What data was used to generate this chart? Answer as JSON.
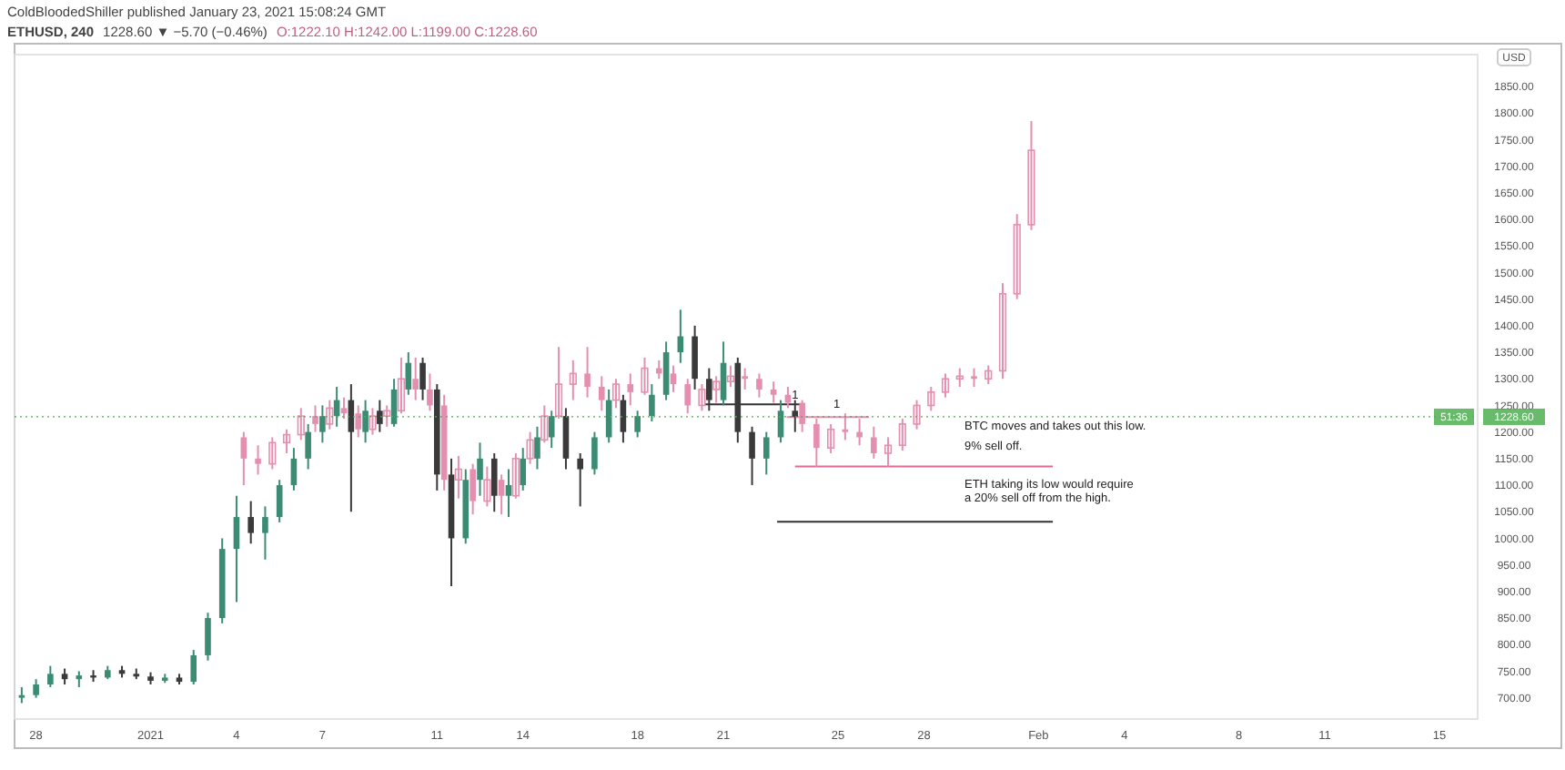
{
  "chart_data": {
    "type": "candlestick",
    "title": "ETHUSD, 240",
    "subtitle": "ColdBloodedShiller published January 23, 2021 15:08:24 GMT",
    "ylabel": "USD",
    "xlim": [
      "2020-12-27T06:00",
      "2021-02-16T08:00"
    ],
    "xticks": [
      {
        "value": "2020-12-28",
        "label": "28"
      },
      {
        "value": "2021-01-01",
        "label": "2021"
      },
      {
        "value": "2021-01-04",
        "label": "4"
      },
      {
        "value": "2021-01-07",
        "label": "7"
      },
      {
        "value": "2021-01-11",
        "label": "11"
      },
      {
        "value": "2021-01-14",
        "label": "14"
      },
      {
        "value": "2021-01-18",
        "label": "18"
      },
      {
        "value": "2021-01-21",
        "label": "21"
      },
      {
        "value": "2021-01-25",
        "label": "25"
      },
      {
        "value": "2021-01-28",
        "label": "28"
      },
      {
        "value": "2021-02-01",
        "label": "Feb"
      },
      {
        "value": "2021-02-04",
        "label": "4"
      },
      {
        "value": "2021-02-08",
        "label": "8"
      },
      {
        "value": "2021-02-11",
        "label": "11"
      },
      {
        "value": "2021-02-15",
        "label": "15"
      }
    ],
    "ylim": [
      660,
      1910
    ],
    "yticks": [
      {
        "value": 700,
        "label": "700.00"
      },
      {
        "value": 750,
        "label": "750.00"
      },
      {
        "value": 800,
        "label": "800.00"
      },
      {
        "value": 850,
        "label": "850.00"
      },
      {
        "value": 900,
        "label": "900.00"
      },
      {
        "value": 950,
        "label": "950.00"
      },
      {
        "value": 1000,
        "label": "1000.00"
      },
      {
        "value": 1050,
        "label": "1050.00"
      },
      {
        "value": 1100,
        "label": "1100.00"
      },
      {
        "value": 1150,
        "label": "1150.00"
      },
      {
        "value": 1200,
        "label": "1200.00"
      },
      {
        "value": 1250,
        "label": "1250.00"
      },
      {
        "value": 1300,
        "label": "1300.00"
      },
      {
        "value": 1350,
        "label": "1350.00"
      },
      {
        "value": 1400,
        "label": "1400.00"
      },
      {
        "value": 1450,
        "label": "1450.00"
      },
      {
        "value": 1500,
        "label": "1500.00"
      },
      {
        "value": 1550,
        "label": "1550.00"
      },
      {
        "value": 1600,
        "label": "1600.00"
      },
      {
        "value": 1650,
        "label": "1650.00"
      },
      {
        "value": 1700,
        "label": "1700.00"
      },
      {
        "value": 1750,
        "label": "1750.00"
      },
      {
        "value": 1800,
        "label": "1800.00"
      },
      {
        "value": 1850,
        "label": "1850.00"
      }
    ],
    "grid": false,
    "ref_lines": [
      {
        "axis": "y",
        "value": 1228.6,
        "label": "1228.60",
        "color": "#4caf50"
      }
    ],
    "annotations": [
      "1228.60 ▼ −5.70 (−0.46%)",
      "O:1222.10 H:1242.00 L:1199.00 C:1228.60",
      "51:36",
      {
        "text": "1",
        "x": "2021-01-23T12:00",
        "y": 1262
      },
      {
        "text": "1",
        "x": "2021-01-24T23:00",
        "y": 1245
      },
      "BTC moves and takes out this low.",
      "9% sell off.",
      "ETH taking its low would require\na 20% sell off from the high."
    ],
    "series": [
      {
        "x": [
          "2020-12-27T12:00",
          "2020-12-28T00:00",
          "2020-12-28T12:00",
          "2020-12-29T00:00",
          "2020-12-29T12:00",
          "2020-12-30T00:00",
          "2020-12-30T12:00",
          "2020-12-31T00:00",
          "2020-12-31T12:00",
          "2021-01-01T00:00",
          "2021-01-01T12:00",
          "2021-01-02T00:00",
          "2021-01-02T12:00",
          "2021-01-03T00:00",
          "2021-01-03T12:00",
          "2021-01-04T00:00",
          "2021-01-04T12:00",
          "2021-01-05T00:00",
          "2021-01-05T12:00",
          "2021-01-06T00:00",
          "2021-01-06T12:00",
          "2021-01-07T00:00",
          "2021-01-07T12:00",
          "2021-01-08T00:00",
          "2021-01-08T12:00",
          "2021-01-09T00:00",
          "2021-01-09T12:00",
          "2021-01-10T00:00",
          "2021-01-10T12:00",
          "2021-01-11T00:00",
          "2021-01-11T12:00",
          "2021-01-12T00:00",
          "2021-01-12T12:00",
          "2021-01-13T00:00",
          "2021-01-13T12:00",
          "2021-01-14T00:00",
          "2021-01-14T12:00",
          "2021-01-15T00:00",
          "2021-01-15T12:00",
          "2021-01-16T00:00",
          "2021-01-16T12:00",
          "2021-01-17T00:00",
          "2021-01-17T12:00",
          "2021-01-18T00:00",
          "2021-01-18T12:00",
          "2021-01-19T00:00",
          "2021-01-19T12:00",
          "2021-01-20T00:00",
          "2021-01-20T12:00",
          "2021-01-21T00:00",
          "2021-01-21T12:00",
          "2021-01-22T00:00",
          "2021-01-22T12:00",
          "2021-01-23T00:00",
          "2021-01-23T12:00"
        ],
        "ohlc": [
          [
            700,
            720,
            690,
            705
          ],
          [
            705,
            735,
            700,
            725
          ],
          [
            725,
            760,
            720,
            745
          ],
          [
            745,
            755,
            725,
            735
          ],
          [
            735,
            750,
            720,
            742
          ],
          [
            742,
            752,
            730,
            738
          ],
          [
            738,
            760,
            735,
            752
          ],
          [
            752,
            760,
            738,
            745
          ],
          [
            745,
            755,
            735,
            740
          ],
          [
            740,
            748,
            725,
            732
          ],
          [
            732,
            745,
            728,
            738
          ],
          [
            738,
            745,
            725,
            730
          ],
          [
            730,
            790,
            725,
            780
          ],
          [
            780,
            860,
            770,
            850
          ],
          [
            850,
            1000,
            840,
            980
          ],
          [
            980,
            1080,
            880,
            1040
          ],
          [
            1040,
            1070,
            990,
            1010
          ],
          [
            1010,
            1060,
            960,
            1040
          ],
          [
            1040,
            1110,
            1030,
            1100
          ],
          [
            1100,
            1170,
            1090,
            1150
          ],
          [
            1150,
            1215,
            1130,
            1200
          ],
          [
            1200,
            1250,
            1180,
            1230
          ],
          [
            1230,
            1285,
            1210,
            1260
          ],
          [
            1260,
            1290,
            1050,
            1200
          ],
          [
            1200,
            1260,
            1180,
            1240
          ],
          [
            1240,
            1260,
            1200,
            1215
          ],
          [
            1215,
            1300,
            1210,
            1280
          ],
          [
            1280,
            1350,
            1270,
            1330
          ],
          [
            1330,
            1340,
            1260,
            1280
          ],
          [
            1280,
            1290,
            1090,
            1120
          ],
          [
            1120,
            1150,
            910,
            1000
          ],
          [
            1000,
            1130,
            990,
            1110
          ],
          [
            1110,
            1180,
            1080,
            1150
          ],
          [
            1150,
            1160,
            1050,
            1080
          ],
          [
            1080,
            1130,
            1040,
            1100
          ],
          [
            1100,
            1170,
            1090,
            1150
          ],
          [
            1150,
            1210,
            1130,
            1190
          ],
          [
            1190,
            1240,
            1170,
            1230
          ],
          [
            1230,
            1245,
            1130,
            1150
          ],
          [
            1150,
            1160,
            1060,
            1130
          ],
          [
            1130,
            1200,
            1120,
            1190
          ],
          [
            1190,
            1280,
            1180,
            1260
          ],
          [
            1260,
            1270,
            1180,
            1200
          ],
          [
            1200,
            1240,
            1190,
            1230
          ],
          [
            1230,
            1290,
            1220,
            1270
          ],
          [
            1270,
            1370,
            1260,
            1350
          ],
          [
            1350,
            1430,
            1330,
            1380
          ],
          [
            1380,
            1400,
            1280,
            1300
          ],
          [
            1300,
            1320,
            1240,
            1260
          ],
          [
            1260,
            1370,
            1250,
            1330
          ],
          [
            1330,
            1340,
            1180,
            1200
          ],
          [
            1200,
            1210,
            1100,
            1150
          ],
          [
            1150,
            1200,
            1120,
            1190
          ],
          [
            1190,
            1260,
            1180,
            1240
          ],
          [
            1240,
            1260,
            1200,
            1228.6
          ]
        ],
        "colors": [
          "#3c8c74",
          "#3c8c74",
          "#3c8c74",
          "#3a3a3a",
          "#3c8c74",
          "#3a3a3a",
          "#3c8c74",
          "#3a3a3a",
          "#3a3a3a",
          "#3a3a3a",
          "#3c8c74",
          "#3a3a3a",
          "#3c8c74",
          "#3c8c74",
          "#3c8c74",
          "#3c8c74",
          "#3a3a3a",
          "#3c8c74",
          "#3c8c74",
          "#3c8c74",
          "#3c8c74",
          "#3c8c74",
          "#3c8c74",
          "#3a3a3a",
          "#3c8c74",
          "#3a3a3a",
          "#3c8c74",
          "#3c8c74",
          "#3a3a3a",
          "#3a3a3a",
          "#3a3a3a",
          "#3c8c74",
          "#3c8c74",
          "#3a3a3a",
          "#3c8c74",
          "#3c8c74",
          "#3c8c74",
          "#3c8c74",
          "#3a3a3a",
          "#3a3a3a",
          "#3c8c74",
          "#3c8c74",
          "#3a3a3a",
          "#3c8c74",
          "#3c8c74",
          "#3c8c74",
          "#3c8c74",
          "#3a3a3a",
          "#3a3a3a",
          "#3c8c74",
          "#3a3a3a",
          "#3a3a3a",
          "#3c8c74",
          "#3c8c74",
          "#3a3a3a"
        ]
      },
      {
        "color": "#e58fb0",
        "x": [
          "2021-01-04T06:00",
          "2021-01-04T18:00",
          "2021-01-05T06:00",
          "2021-01-05T18:00",
          "2021-01-06T06:00",
          "2021-01-06T18:00",
          "2021-01-07T06:00",
          "2021-01-07T18:00",
          "2021-01-08T06:00",
          "2021-01-08T18:00",
          "2021-01-09T06:00",
          "2021-01-09T18:00",
          "2021-01-10T06:00",
          "2021-01-10T18:00",
          "2021-01-11T06:00",
          "2021-01-11T18:00",
          "2021-01-12T06:00",
          "2021-01-12T18:00",
          "2021-01-13T06:00",
          "2021-01-13T18:00",
          "2021-01-14T06:00",
          "2021-01-14T18:00",
          "2021-01-15T06:00",
          "2021-01-15T18:00",
          "2021-01-16T06:00",
          "2021-01-16T18:00",
          "2021-01-17T06:00",
          "2021-01-17T18:00",
          "2021-01-18T06:00",
          "2021-01-18T18:00",
          "2021-01-19T06:00",
          "2021-01-19T18:00",
          "2021-01-20T06:00",
          "2021-01-20T18:00",
          "2021-01-21T06:00",
          "2021-01-21T18:00",
          "2021-01-22T06:00",
          "2021-01-22T18:00",
          "2021-01-23T06:00",
          "2021-01-23T18:00",
          "2021-01-24T06:00",
          "2021-01-24T18:00",
          "2021-01-25T06:00",
          "2021-01-25T18:00",
          "2021-01-26T06:00",
          "2021-01-26T18:00",
          "2021-01-27T06:00",
          "2021-01-27T18:00",
          "2021-01-28T06:00",
          "2021-01-28T18:00",
          "2021-01-29T06:00",
          "2021-01-29T18:00",
          "2021-01-30T06:00",
          "2021-01-30T18:00",
          "2021-01-31T06:00",
          "2021-01-31T18:00"
        ],
        "ohlc": [
          [
            1190,
            1200,
            1100,
            1150
          ],
          [
            1150,
            1175,
            1120,
            1140
          ],
          [
            1140,
            1190,
            1130,
            1180
          ],
          [
            1180,
            1205,
            1160,
            1195
          ],
          [
            1195,
            1245,
            1185,
            1230
          ],
          [
            1230,
            1250,
            1200,
            1215
          ],
          [
            1215,
            1260,
            1205,
            1245
          ],
          [
            1245,
            1265,
            1225,
            1235
          ],
          [
            1235,
            1250,
            1190,
            1205
          ],
          [
            1205,
            1245,
            1195,
            1230
          ],
          [
            1230,
            1250,
            1210,
            1240
          ],
          [
            1240,
            1340,
            1235,
            1300
          ],
          [
            1300,
            1340,
            1260,
            1280
          ],
          [
            1280,
            1310,
            1240,
            1250
          ],
          [
            1250,
            1270,
            1090,
            1110
          ],
          [
            1110,
            1155,
            1075,
            1130
          ],
          [
            1130,
            1140,
            1045,
            1070
          ],
          [
            1070,
            1135,
            1060,
            1110
          ],
          [
            1110,
            1120,
            1045,
            1080
          ],
          [
            1080,
            1160,
            1075,
            1150
          ],
          [
            1150,
            1200,
            1140,
            1185
          ],
          [
            1185,
            1250,
            1180,
            1230
          ],
          [
            1230,
            1360,
            1225,
            1290
          ],
          [
            1290,
            1335,
            1260,
            1310
          ],
          [
            1310,
            1360,
            1265,
            1285
          ],
          [
            1285,
            1305,
            1240,
            1260
          ],
          [
            1260,
            1300,
            1245,
            1290
          ],
          [
            1290,
            1310,
            1250,
            1275
          ],
          [
            1275,
            1340,
            1270,
            1320
          ],
          [
            1320,
            1335,
            1300,
            1310
          ],
          [
            1310,
            1325,
            1275,
            1290
          ],
          [
            1290,
            1300,
            1235,
            1250
          ],
          [
            1250,
            1290,
            1240,
            1280
          ],
          [
            1280,
            1305,
            1255,
            1295
          ],
          [
            1295,
            1325,
            1285,
            1305
          ],
          [
            1305,
            1320,
            1280,
            1300
          ],
          [
            1300,
            1310,
            1265,
            1280
          ],
          [
            1280,
            1295,
            1255,
            1270
          ],
          [
            1270,
            1285,
            1245,
            1255
          ],
          [
            1255,
            1260,
            1200,
            1215
          ],
          [
            1215,
            1225,
            1135,
            1170
          ],
          [
            1170,
            1215,
            1160,
            1205
          ],
          [
            1205,
            1235,
            1185,
            1200
          ],
          [
            1200,
            1225,
            1175,
            1190
          ],
          [
            1190,
            1210,
            1150,
            1160
          ],
          [
            1160,
            1190,
            1135,
            1175
          ],
          [
            1175,
            1225,
            1165,
            1215
          ],
          [
            1215,
            1260,
            1205,
            1250
          ],
          [
            1250,
            1285,
            1240,
            1275
          ],
          [
            1275,
            1310,
            1265,
            1300
          ],
          [
            1300,
            1320,
            1285,
            1305
          ],
          [
            1305,
            1320,
            1285,
            1300
          ],
          [
            1300,
            1325,
            1290,
            1315
          ],
          [
            1315,
            1480,
            1300,
            1460
          ],
          [
            1460,
            1610,
            1450,
            1590
          ],
          [
            1590,
            1785,
            1580,
            1730
          ]
        ]
      },
      {
        "type": "line",
        "color": "#333333",
        "x": [
          "2021-01-20T04:00",
          "2021-01-23T20:00"
        ],
        "values": [
          1252,
          1252
        ]
      },
      {
        "type": "line",
        "color": "#e58fb0",
        "x": [
          "2021-01-23T05:00",
          "2021-01-26T02:00"
        ],
        "values": [
          1228,
          1228
        ]
      },
      {
        "type": "line",
        "color": "#e06a96",
        "x": [
          "2021-01-23T12:00",
          "2021-02-01T12:00"
        ],
        "values": [
          1135,
          1135
        ]
      },
      {
        "type": "line",
        "color": "#333333",
        "x": [
          "2021-01-22T21:00",
          "2021-02-01T12:00"
        ],
        "values": [
          1031,
          1031
        ]
      }
    ]
  }
}
